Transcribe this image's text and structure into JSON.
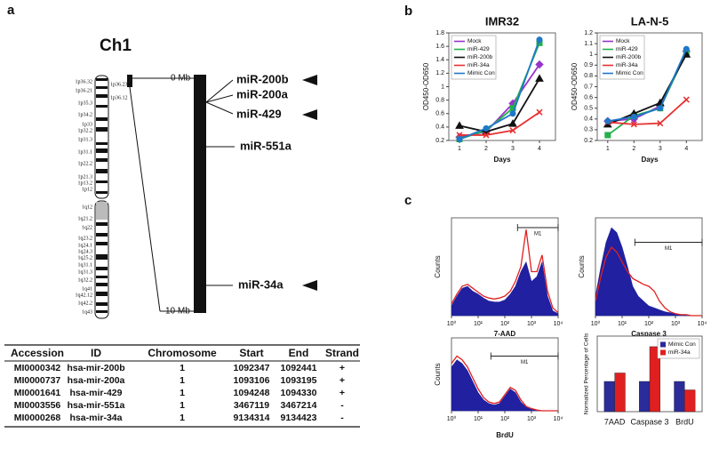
{
  "panel_labels": [
    "a",
    "b",
    "c"
  ],
  "ideogram": {
    "title": "Ch1",
    "left_bands": [
      "1p36.32",
      "1p36.21",
      "1p35.3",
      "1p34.2",
      "1p33",
      "1p32.2",
      "1p31.3",
      "1p31.1",
      "1p22.2",
      "1p21.3",
      "1p13.2",
      "1p12",
      "1q12",
      "1q21.2",
      "1q22",
      "1q23.2",
      "1q24.1",
      "1q24.3",
      "1q25.2",
      "1q31.1",
      "1q31.3",
      "1q32.2",
      "1q41",
      "1q42.12",
      "1q42.2",
      "1q43"
    ],
    "right_bands": [
      "1p36.23",
      "1p36.12"
    ],
    "scale": [
      "0 Mb",
      "10 Mb"
    ],
    "genes": [
      "miR-200b",
      "miR-200a",
      "miR-429",
      "miR-551a",
      "miR-34a"
    ]
  },
  "table": {
    "header": [
      "Accession",
      "ID",
      "Chromosome",
      "Start",
      "End",
      "Strand"
    ],
    "rows": [
      [
        "MI0000342",
        "hsa-mir-200b",
        1,
        1092347,
        1092441,
        "+"
      ],
      [
        "MI0000737",
        "hsa-mir-200a",
        1,
        1093106,
        1093195,
        "+"
      ],
      [
        "MI0001641",
        "hsa-mir-429",
        1,
        1094248,
        1094330,
        "+"
      ],
      [
        "MI0003556",
        "hsa-mir-551a",
        1,
        3467119,
        3467214,
        "-"
      ],
      [
        "MI0000268",
        "hsa-mir-34a",
        1,
        9134314,
        9134423,
        "-"
      ]
    ]
  },
  "chart_data": [
    {
      "type": "line",
      "title": "IMR32",
      "xlabel": "Days",
      "ylabel": "OD450-OD650",
      "x": [
        1,
        2,
        3,
        4
      ],
      "xlim": [
        0.6,
        4.6
      ],
      "xticks": [
        1,
        2,
        3,
        4
      ],
      "ylim": [
        0.2,
        1.8
      ],
      "yticks": [
        0.2,
        0.4,
        0.6,
        0.8,
        1,
        1.2,
        1.4,
        1.6,
        1.8
      ],
      "legend": "upper left",
      "series": [
        {
          "name": "Mock",
          "color": "#9933cc",
          "marker": "diamond",
          "values": [
            0.25,
            0.33,
            0.75,
            1.33
          ]
        },
        {
          "name": "miR-429",
          "color": "#22b04a",
          "marker": "square",
          "values": [
            0.22,
            0.35,
            0.68,
            1.65
          ]
        },
        {
          "name": "miR-200b",
          "color": "#111111",
          "marker": "triangle",
          "values": [
            0.42,
            0.33,
            0.45,
            1.12
          ]
        },
        {
          "name": "miR-34a",
          "color": "#e83030",
          "marker": "x",
          "values": [
            0.28,
            0.28,
            0.35,
            0.62
          ]
        },
        {
          "name": "Mimic Con",
          "color": "#1f78c8",
          "marker": "circle",
          "values": [
            0.22,
            0.38,
            0.6,
            1.7
          ]
        }
      ]
    },
    {
      "type": "line",
      "title": "LA-N-5",
      "xlabel": "Days",
      "ylabel": "OD450-OD650",
      "x": [
        1,
        2,
        3,
        4
      ],
      "xlim": [
        0.6,
        4.6
      ],
      "xticks": [
        1,
        2,
        3,
        4
      ],
      "ylim": [
        0.2,
        1.2
      ],
      "yticks": [
        0.2,
        0.3,
        0.4,
        0.5,
        0.6,
        0.7,
        0.8,
        0.9,
        1,
        1.1,
        1.2
      ],
      "legend": "upper left",
      "series": [
        {
          "name": "Mock",
          "color": "#9933cc",
          "marker": "diamond",
          "values": [
            0.38,
            0.4,
            0.52,
            1.03
          ]
        },
        {
          "name": "miR-429",
          "color": "#22b04a",
          "marker": "square",
          "values": [
            0.25,
            0.43,
            0.5,
            1.02
          ]
        },
        {
          "name": "miR-200b",
          "color": "#111111",
          "marker": "triangle",
          "values": [
            0.35,
            0.45,
            0.55,
            1.0
          ]
        },
        {
          "name": "miR-34a",
          "color": "#e83030",
          "marker": "x",
          "values": [
            0.37,
            0.35,
            0.36,
            0.58
          ]
        },
        {
          "name": "Mimic Con",
          "color": "#1f78c8",
          "marker": "circle",
          "values": [
            0.38,
            0.42,
            0.5,
            1.05
          ]
        }
      ]
    },
    {
      "type": "area",
      "xlabel": "7-AAD",
      "ylabel": "Counts",
      "log_x": true,
      "x": [
        1,
        1.6,
        2.5,
        4,
        6.3,
        10,
        16,
        25,
        40,
        63,
        100,
        160,
        250,
        400,
        630,
        1000,
        1600,
        2500,
        4000,
        6300,
        10000
      ],
      "xlim": [
        1,
        10000
      ],
      "xticks": [
        {
          "value": 1,
          "label": "10⁰"
        },
        {
          "value": 10,
          "label": "10¹"
        },
        {
          "value": 100,
          "label": "10²"
        },
        {
          "value": 1000,
          "label": "10³"
        },
        {
          "value": 10000,
          "label": "10⁴"
        }
      ],
      "ylim": [
        0,
        100
      ],
      "gate": {
        "label": "M1",
        "range": [
          300,
          10000
        ],
        "level": 90
      },
      "series": [
        {
          "color": "#2020a0",
          "fill": true,
          "values": [
            10,
            20,
            28,
            30,
            25,
            22,
            18,
            15,
            14,
            14,
            16,
            22,
            30,
            45,
            55,
            35,
            40,
            55,
            20,
            5,
            2
          ]
        },
        {
          "color": "#e02020",
          "fill": false,
          "values": [
            12,
            22,
            30,
            32,
            28,
            24,
            20,
            18,
            17,
            18,
            20,
            25,
            35,
            50,
            88,
            45,
            45,
            62,
            25,
            8,
            3
          ]
        }
      ]
    },
    {
      "type": "area",
      "xlabel": "Caspase 3",
      "ylabel": "Counts",
      "log_x": true,
      "x": [
        1,
        1.6,
        2.5,
        4,
        6.3,
        10,
        16,
        25,
        40,
        63,
        100,
        160,
        250,
        400,
        630,
        1000,
        1600,
        2500,
        4000,
        6300,
        10000
      ],
      "xlim": [
        1,
        10000
      ],
      "xticks": [
        {
          "value": 1,
          "label": "10⁰"
        },
        {
          "value": 10,
          "label": "10¹"
        },
        {
          "value": 100,
          "label": "10²"
        },
        {
          "value": 1000,
          "label": "10³"
        },
        {
          "value": 10000,
          "label": "10⁴"
        }
      ],
      "ylim": [
        0,
        100
      ],
      "gate": {
        "label": "M1",
        "range": [
          30,
          10000
        ],
        "level": 75
      },
      "series": [
        {
          "color": "#2020a0",
          "fill": true,
          "values": [
            20,
            50,
            75,
            90,
            85,
            70,
            50,
            30,
            20,
            15,
            10,
            8,
            6,
            4,
            3,
            2,
            1,
            1,
            0,
            0,
            0
          ]
        },
        {
          "color": "#e02020",
          "fill": false,
          "values": [
            15,
            40,
            60,
            70,
            65,
            55,
            45,
            38,
            35,
            32,
            30,
            25,
            15,
            8,
            4,
            2,
            1,
            1,
            0,
            0,
            0
          ]
        }
      ]
    },
    {
      "type": "area",
      "xlabel": "BrdU",
      "ylabel": "Counts",
      "log_x": true,
      "x": [
        1,
        1.6,
        2.5,
        4,
        6.3,
        10,
        16,
        25,
        40,
        63,
        100,
        160,
        250,
        400,
        630,
        1000,
        1600,
        2500,
        4000,
        6300,
        10000
      ],
      "xlim": [
        1,
        10000
      ],
      "xticks": [
        {
          "value": 1,
          "label": "10⁰"
        },
        {
          "value": 10,
          "label": "10¹"
        },
        {
          "value": 100,
          "label": "10²"
        },
        {
          "value": 1000,
          "label": "10³"
        },
        {
          "value": 10000,
          "label": "10⁴"
        }
      ],
      "ylim": [
        0,
        100
      ],
      "gate": {
        "label": "M1",
        "range": [
          30,
          10000
        ],
        "level": 75
      },
      "series": [
        {
          "color": "#2020a0",
          "fill": true,
          "values": [
            60,
            70,
            65,
            55,
            40,
            25,
            15,
            10,
            8,
            10,
            20,
            30,
            25,
            12,
            5,
            2,
            1,
            0,
            0,
            0,
            0
          ]
        },
        {
          "color": "#e02020",
          "fill": false,
          "values": [
            65,
            75,
            70,
            60,
            45,
            30,
            18,
            12,
            10,
            12,
            22,
            32,
            28,
            15,
            6,
            3,
            1,
            0,
            0,
            0,
            0
          ]
        }
      ]
    },
    {
      "type": "bar",
      "ylabel": "Normalized Percentage of Cells",
      "categories": [
        "7AAD",
        "Caspase 3",
        "BrdU"
      ],
      "ylim": [
        0,
        250
      ],
      "legend": "upper right",
      "series": [
        {
          "name": "Mimic Con",
          "color": "#2b2b9a",
          "values": [
            100,
            100,
            100
          ]
        },
        {
          "name": "miR-34a",
          "color": "#e02020",
          "values": [
            128,
            215,
            72
          ]
        }
      ]
    }
  ]
}
